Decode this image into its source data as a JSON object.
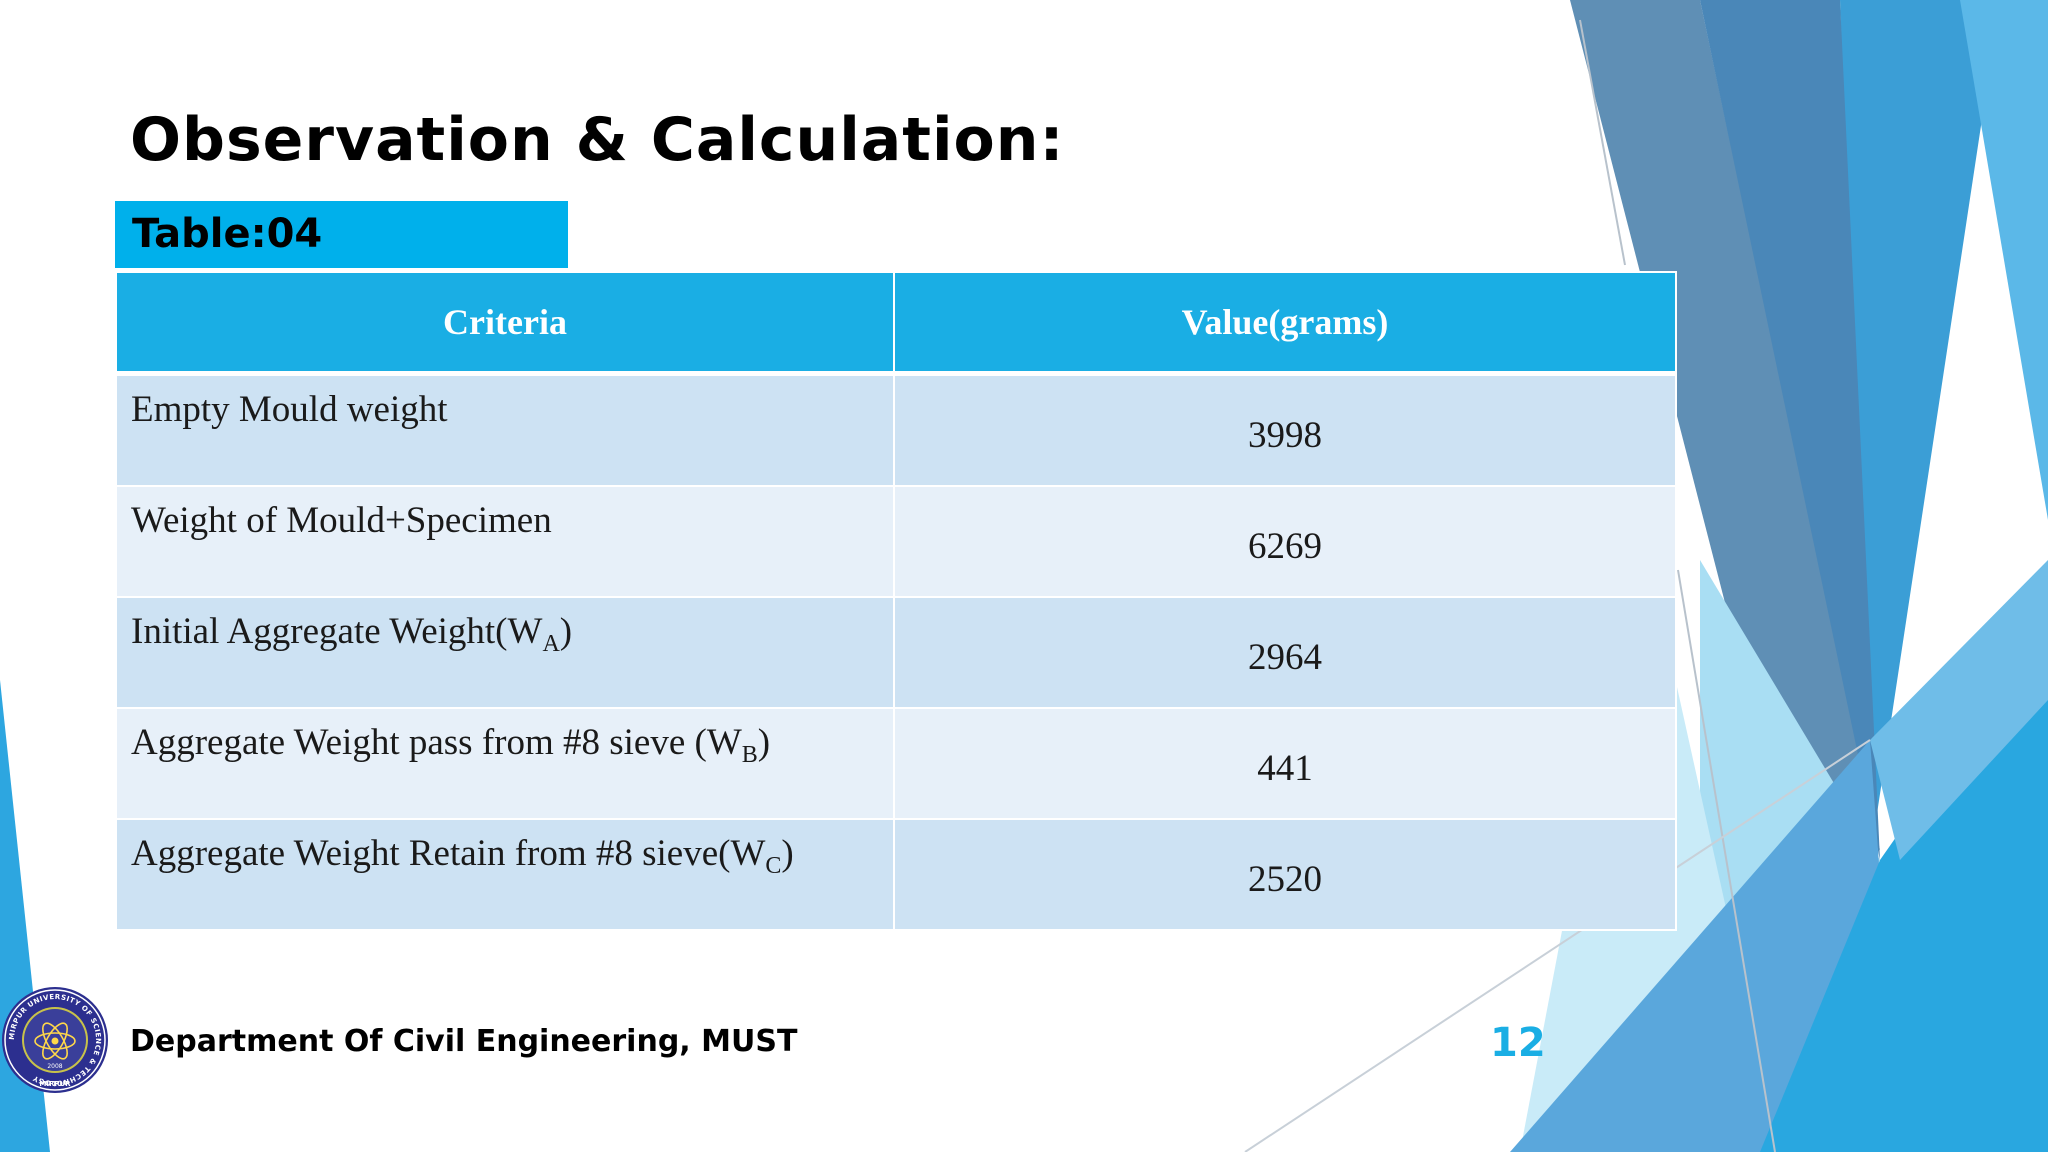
{
  "slide": {
    "title": "Observation & Calculation:",
    "table_tag": "Table:04",
    "footer": "Department Of Civil Engineering, MUST",
    "page_number": "12"
  },
  "table": {
    "headers": [
      "Criteria",
      "Value(grams)"
    ],
    "rows": [
      {
        "criteria": "Empty Mould weight",
        "value": "3998"
      },
      {
        "criteria": "Weight of Mould+Specimen",
        "value": "6269"
      },
      {
        "criteria_main": "Initial Aggregate Weight(W",
        "criteria_sub": "A",
        "criteria_end": ")",
        "value": "2964"
      },
      {
        "criteria_main": "Aggregate Weight pass from #8 sieve (W",
        "criteria_sub": "B",
        "criteria_end": ")",
        "value": "441"
      },
      {
        "criteria_main": "Aggregate Weight Retain from #8 sieve(W",
        "criteria_sub": "C",
        "criteria_end": ")",
        "value": "2520"
      }
    ]
  },
  "logo": {
    "ring_text": "MIRPUR UNIVERSITY OF SCIENCE & TECHNOLOGY",
    "year": "2008",
    "bottom_text": "MIRPUR"
  },
  "colors": {
    "accent": "#1aaee4",
    "table_tag": "#00b0eb",
    "row_odd": "#cde2f3",
    "row_even": "#e7f0f9",
    "dark_blue": "#2f5f8f"
  }
}
